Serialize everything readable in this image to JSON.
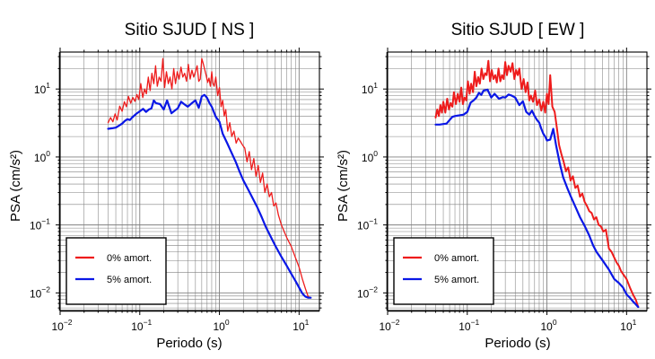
{
  "colors": {
    "undamped": "#ee1c1c",
    "damped": "#0a17e6",
    "grid": "#808080",
    "frame": "#000000"
  },
  "chart_data": [
    {
      "type": "line",
      "title": "Sitio SJUD [ NS ]",
      "xlabel": "Periodo (s)",
      "ylabel": "PSA (cm/s²)",
      "xscale": "log",
      "yscale": "log",
      "xlim": [
        0.01,
        18
      ],
      "ylim": [
        0.0055,
        35
      ],
      "xticks": [
        {
          "base": "10",
          "exp": "−2",
          "value": 0.01
        },
        {
          "base": "10",
          "exp": "−1",
          "value": 0.1
        },
        {
          "base": "10",
          "exp": "0",
          "value": 1
        },
        {
          "base": "10",
          "exp": "1",
          "value": 10
        }
      ],
      "yticks": [
        {
          "base": "10",
          "exp": "−2",
          "value": 0.01
        },
        {
          "base": "10",
          "exp": "−1",
          "value": 0.1
        },
        {
          "base": "10",
          "exp": "0",
          "value": 1
        },
        {
          "base": "10",
          "exp": "1",
          "value": 10
        }
      ],
      "grid": true,
      "legend": "bottom-left",
      "series": [
        {
          "name": "0% amort.",
          "color": "#ee1c1c",
          "width": 1.3,
          "x": [
            0.04,
            0.043,
            0.046,
            0.049,
            0.052,
            0.056,
            0.06,
            0.064,
            0.068,
            0.072,
            0.077,
            0.082,
            0.087,
            0.092,
            0.097,
            0.103,
            0.109,
            0.115,
            0.121,
            0.128,
            0.135,
            0.142,
            0.15,
            0.158,
            0.166,
            0.175,
            0.185,
            0.195,
            0.205,
            0.216,
            0.228,
            0.24,
            0.253,
            0.267,
            0.281,
            0.296,
            0.312,
            0.329,
            0.347,
            0.366,
            0.386,
            0.407,
            0.429,
            0.452,
            0.476,
            0.5,
            0.525,
            0.55,
            0.575,
            0.6,
            0.625,
            0.65,
            0.68,
            0.71,
            0.74,
            0.77,
            0.8,
            0.83,
            0.86,
            0.9,
            0.95,
            1.0,
            1.05,
            1.1,
            1.15,
            1.2,
            1.27,
            1.35,
            1.43,
            1.52,
            1.62,
            1.72,
            1.83,
            1.95,
            2.08,
            2.22,
            2.37,
            2.53,
            2.7,
            2.88,
            3.07,
            3.27,
            3.49,
            3.72,
            3.97,
            4.23,
            4.51,
            4.81,
            5.13,
            5.5,
            6.0,
            7.0,
            8.0,
            9.0,
            10.0,
            11.0,
            12.0,
            13.0,
            14.0
          ],
          "y": [
            3.2,
            3.8,
            3.3,
            4.3,
            3.5,
            5.6,
            4.7,
            6.5,
            5.5,
            7.8,
            6.2,
            7.5,
            6.6,
            8.3,
            7.0,
            12.0,
            7.5,
            10.0,
            8.5,
            15.0,
            9.5,
            17.0,
            12.0,
            22.0,
            11.0,
            15.0,
            13.0,
            28.0,
            10.5,
            18.0,
            12.0,
            15.0,
            10.0,
            20.0,
            12.0,
            18.0,
            14.0,
            21.0,
            15.0,
            17.0,
            13.0,
            23.0,
            14.0,
            19.0,
            15.0,
            18.0,
            22.0,
            13.0,
            14.0,
            28.0,
            24.0,
            20.0,
            16.0,
            12.5,
            14.5,
            11.0,
            18.0,
            12.0,
            11.0,
            15.0,
            8.0,
            10.5,
            5.5,
            6.8,
            4.0,
            5.0,
            2.4,
            3.2,
            2.0,
            2.4,
            1.6,
            1.9,
            1.7,
            1.5,
            1.35,
            0.85,
            1.2,
            0.65,
            0.95,
            0.52,
            0.75,
            0.42,
            0.58,
            0.3,
            0.4,
            0.26,
            0.3,
            0.19,
            0.21,
            0.14,
            0.1,
            0.065,
            0.048,
            0.033,
            0.024,
            0.016,
            0.0115,
            0.0088,
            0.0085
          ]
        },
        {
          "name": "5% amort.",
          "color": "#0a17e6",
          "width": 2.2,
          "x": [
            0.04,
            0.045,
            0.05,
            0.055,
            0.06,
            0.065,
            0.07,
            0.075,
            0.08,
            0.09,
            0.1,
            0.11,
            0.12,
            0.13,
            0.14,
            0.15,
            0.16,
            0.18,
            0.2,
            0.22,
            0.25,
            0.28,
            0.3,
            0.33,
            0.36,
            0.4,
            0.45,
            0.5,
            0.55,
            0.6,
            0.65,
            0.7,
            0.75,
            0.8,
            0.9,
            1.0,
            1.1,
            1.25,
            1.4,
            1.6,
            1.8,
            2.0,
            2.3,
            2.6,
            3.0,
            3.4,
            3.8,
            4.2,
            5.0,
            6.0,
            7.0,
            8.0,
            9.0,
            10.0,
            11.0,
            12.0,
            13.0,
            14.0
          ],
          "y": [
            2.6,
            2.65,
            2.7,
            2.9,
            3.1,
            3.4,
            3.6,
            3.5,
            3.8,
            4.3,
            4.7,
            5.1,
            4.6,
            5.0,
            5.2,
            6.8,
            6.2,
            6.0,
            5.0,
            6.8,
            4.4,
            4.9,
            5.2,
            6.5,
            6.0,
            5.5,
            6.2,
            6.8,
            5.3,
            7.8,
            8.2,
            7.4,
            6.2,
            5.5,
            3.9,
            3.3,
            2.2,
            1.6,
            1.2,
            0.85,
            0.6,
            0.45,
            0.33,
            0.25,
            0.18,
            0.13,
            0.095,
            0.075,
            0.05,
            0.034,
            0.025,
            0.019,
            0.015,
            0.012,
            0.0098,
            0.0088,
            0.0085,
            0.0085
          ]
        }
      ]
    },
    {
      "type": "line",
      "title": "Sitio SJUD [ EW ]",
      "xlabel": "Periodo (s)",
      "ylabel": "PSA (cm/s²)",
      "xscale": "log",
      "yscale": "log",
      "xlim": [
        0.01,
        18
      ],
      "ylim": [
        0.0055,
        35
      ],
      "xticks": [
        {
          "base": "10",
          "exp": "−2",
          "value": 0.01
        },
        {
          "base": "10",
          "exp": "−1",
          "value": 0.1
        },
        {
          "base": "10",
          "exp": "0",
          "value": 1
        },
        {
          "base": "10",
          "exp": "1",
          "value": 10
        }
      ],
      "yticks": [
        {
          "base": "10",
          "exp": "−2",
          "value": 0.01
        },
        {
          "base": "10",
          "exp": "−1",
          "value": 0.1
        },
        {
          "base": "10",
          "exp": "0",
          "value": 1
        },
        {
          "base": "10",
          "exp": "1",
          "value": 10
        }
      ],
      "grid": true,
      "legend": "bottom-left",
      "series": [
        {
          "name": "0% amort.",
          "color": "#ee1c1c",
          "width": 2.0,
          "x": [
            0.04,
            0.042,
            0.044,
            0.046,
            0.048,
            0.05,
            0.053,
            0.056,
            0.059,
            0.062,
            0.065,
            0.068,
            0.072,
            0.076,
            0.08,
            0.084,
            0.088,
            0.092,
            0.097,
            0.102,
            0.107,
            0.112,
            0.118,
            0.124,
            0.13,
            0.137,
            0.144,
            0.151,
            0.159,
            0.167,
            0.175,
            0.184,
            0.193,
            0.203,
            0.213,
            0.224,
            0.235,
            0.247,
            0.26,
            0.273,
            0.287,
            0.3,
            0.315,
            0.33,
            0.35,
            0.37,
            0.39,
            0.41,
            0.43,
            0.45,
            0.48,
            0.51,
            0.54,
            0.57,
            0.6,
            0.63,
            0.67,
            0.71,
            0.75,
            0.8,
            0.85,
            0.9,
            0.95,
            1.0,
            1.05,
            1.1,
            1.17,
            1.25,
            1.33,
            1.42,
            1.52,
            1.62,
            1.73,
            1.85,
            1.98,
            2.12,
            2.27,
            2.43,
            2.6,
            2.78,
            2.97,
            3.18,
            3.4,
            3.64,
            3.9,
            4.17,
            4.46,
            4.77,
            5.1,
            5.5,
            6.0,
            6.5,
            7.0,
            7.5,
            8.0,
            8.5,
            9.0,
            10.0,
            11.0,
            12.0,
            13.0,
            14.0
          ],
          "y": [
            3.8,
            5.0,
            4.0,
            5.8,
            4.5,
            6.5,
            4.5,
            7.2,
            5.0,
            6.2,
            5.5,
            9.0,
            6.0,
            8.5,
            6.5,
            10.5,
            6.0,
            7.5,
            6.8,
            13.0,
            8.5,
            12.0,
            9.0,
            18.0,
            11.0,
            15.0,
            12.0,
            20.0,
            14.0,
            17.0,
            16.0,
            26.0,
            13.0,
            19.0,
            14.0,
            16.0,
            12.5,
            20.0,
            13.0,
            16.0,
            14.0,
            25.0,
            16.0,
            22.0,
            18.0,
            24.0,
            14.0,
            19.0,
            16.0,
            20.0,
            10.0,
            14.0,
            9.0,
            12.5,
            6.8,
            8.0,
            6.5,
            9.5,
            5.8,
            7.0,
            4.8,
            6.5,
            4.5,
            8.5,
            6.0,
            16.0,
            5.5,
            4.6,
            2.7,
            1.5,
            1.1,
            0.85,
            0.62,
            0.7,
            0.45,
            0.52,
            0.35,
            0.38,
            0.26,
            0.29,
            0.22,
            0.19,
            0.16,
            0.15,
            0.12,
            0.13,
            0.1,
            0.095,
            0.08,
            0.085,
            0.045,
            0.04,
            0.033,
            0.028,
            0.025,
            0.021,
            0.019,
            0.016,
            0.012,
            0.0095,
            0.008,
            0.0062
          ]
        },
        {
          "name": "5% amort.",
          "color": "#0a17e6",
          "width": 2.2,
          "x": [
            0.04,
            0.045,
            0.05,
            0.055,
            0.06,
            0.065,
            0.07,
            0.08,
            0.09,
            0.1,
            0.11,
            0.12,
            0.13,
            0.14,
            0.15,
            0.16,
            0.18,
            0.2,
            0.22,
            0.25,
            0.28,
            0.3,
            0.33,
            0.36,
            0.4,
            0.45,
            0.5,
            0.55,
            0.6,
            0.65,
            0.7,
            0.75,
            0.8,
            0.85,
            0.9,
            0.95,
            1.0,
            1.1,
            1.2,
            1.3,
            1.45,
            1.6,
            1.8,
            2.0,
            2.3,
            2.6,
            3.0,
            3.4,
            3.8,
            4.2,
            5.0,
            6.0,
            7.0,
            8.0,
            9.0,
            10.0,
            11.0,
            12.0,
            13.0,
            14.0
          ],
          "y": [
            3.0,
            3.0,
            3.05,
            3.1,
            3.5,
            3.9,
            4.0,
            4.1,
            4.2,
            4.6,
            6.3,
            6.8,
            7.5,
            8.8,
            8.2,
            9.5,
            9.8,
            7.5,
            8.5,
            7.2,
            7.6,
            7.5,
            8.3,
            8.0,
            7.5,
            5.8,
            6.6,
            4.6,
            4.2,
            4.8,
            4.0,
            3.5,
            3.2,
            2.6,
            2.2,
            2.0,
            1.75,
            1.8,
            2.6,
            1.5,
            0.8,
            0.5,
            0.35,
            0.26,
            0.18,
            0.13,
            0.095,
            0.07,
            0.05,
            0.04,
            0.03,
            0.022,
            0.016,
            0.014,
            0.012,
            0.0095,
            0.0085,
            0.0075,
            0.0068,
            0.0062
          ]
        }
      ]
    }
  ]
}
